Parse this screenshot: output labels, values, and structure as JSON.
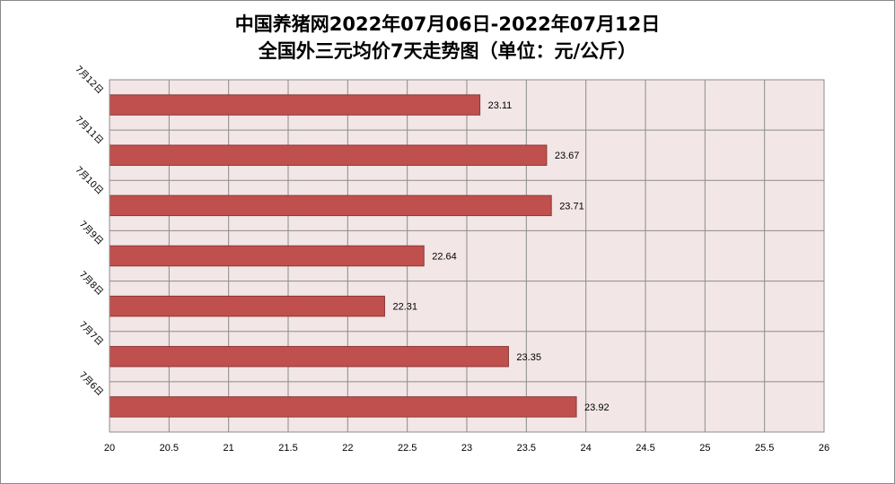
{
  "title_line1": "中国养猪网2022年07月06日-2022年07月12日",
  "title_line2": "全国外三元均价7天走势图（单位：元/公斤）",
  "chart_data": {
    "type": "bar",
    "orientation": "horizontal",
    "title": "中国养猪网2022年07月06日-2022年07月12日 全国外三元均价7天走势图（单位：元/公斤）",
    "categories": [
      "7月12日",
      "7月11日",
      "7月10日",
      "7月9日",
      "7月8日",
      "7月7日",
      "7月6日"
    ],
    "values": [
      23.11,
      23.67,
      23.71,
      22.64,
      22.31,
      23.35,
      23.92
    ],
    "value_labels": [
      "23.11",
      "23.67",
      "23.71",
      "22.64",
      "22.31",
      "23.35",
      "23.92"
    ],
    "xlim": [
      20,
      26
    ],
    "xticks": [
      "20",
      "20.5",
      "21",
      "21.5",
      "22",
      "22.5",
      "23",
      "23.5",
      "24",
      "24.5",
      "25",
      "25.5",
      "26"
    ],
    "grid": true,
    "colors": {
      "bar": "#c0504d",
      "bar_edge": "#8c3836",
      "plot_bg": "#f2e6e6",
      "grid": "#8c8c8c"
    }
  }
}
